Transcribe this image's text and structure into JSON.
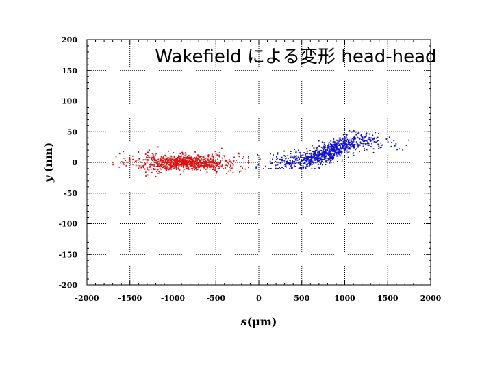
{
  "chart_data": {
    "type": "scatter",
    "title": "Wakefield による変形   head-head",
    "xlabel": "s(μm)",
    "ylabel": "y (nm)",
    "xlim": [
      -2000,
      2000
    ],
    "ylim": [
      -200,
      200
    ],
    "xticks": [
      -2000,
      -1500,
      -1000,
      -500,
      0,
      500,
      1000,
      1500,
      2000
    ],
    "yticks": [
      200,
      150,
      100,
      50,
      0,
      -50,
      -100,
      -150,
      -200
    ],
    "grid": true,
    "series": [
      {
        "color": "#dd1111",
        "distribution": {
          "n": 900,
          "x_mean": -850,
          "x_sd": 300,
          "x_min": -1700,
          "x_max": -120,
          "y_mean": 0,
          "y_sd_core": 6,
          "y_sd_tail": 9,
          "y_max_abs": 32
        }
      },
      {
        "color": "#1111cc",
        "distribution": {
          "n": 900,
          "x_mean": 800,
          "x_sd": 300,
          "x_min": -30,
          "x_max": 1760,
          "y_trend": [
            [
              0,
              0
            ],
            [
              500,
              2
            ],
            [
              700,
              10
            ],
            [
              900,
              22
            ],
            [
              1100,
              32
            ],
            [
              1300,
              35
            ],
            [
              1700,
              25
            ]
          ],
          "y_sd": 8,
          "y_min": -10,
          "y_max": 65
        }
      }
    ]
  }
}
